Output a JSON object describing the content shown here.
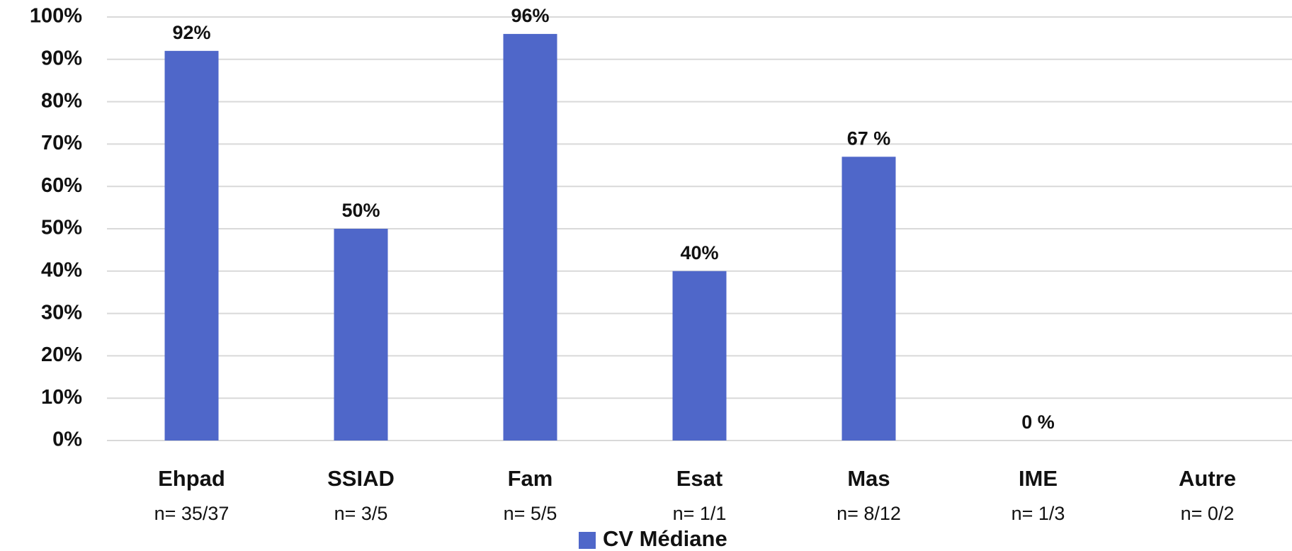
{
  "chart_data": {
    "type": "bar",
    "categories": [
      "Ehpad",
      "SSIAD",
      "Fam",
      "Esat",
      "Mas",
      "IME",
      "Autre"
    ],
    "sublabels": [
      "n= 35/37",
      "n= 3/5",
      "n= 5/5",
      "n= 1/1",
      "n= 8/12",
      "n= 1/3",
      "n= 0/2"
    ],
    "series": [
      {
        "name": "CV Médiane",
        "color": "#4f67c9",
        "values": [
          92,
          50,
          96,
          40,
          67,
          0,
          null
        ],
        "value_labels": [
          "92%",
          "50%",
          "96%",
          "40%",
          "67 %",
          "0 %",
          null
        ]
      }
    ],
    "ylim": [
      0,
      100
    ],
    "yticks": [
      {
        "value": 0,
        "label": "0%"
      },
      {
        "value": 10,
        "label": "10%"
      },
      {
        "value": 20,
        "label": "20%"
      },
      {
        "value": 30,
        "label": "30%"
      },
      {
        "value": 40,
        "label": "40%"
      },
      {
        "value": 50,
        "label": "50%"
      },
      {
        "value": 60,
        "label": "60%"
      },
      {
        "value": 70,
        "label": "70%"
      },
      {
        "value": 80,
        "label": "80%"
      },
      {
        "value": 90,
        "label": "90%"
      },
      {
        "value": 100,
        "label": "100%"
      }
    ],
    "grid": true,
    "legend": "bottom"
  }
}
